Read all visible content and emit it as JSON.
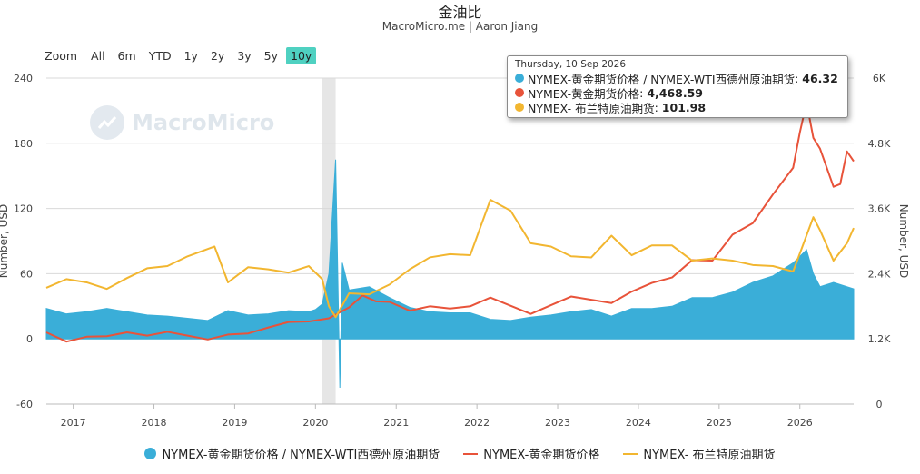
{
  "header": {
    "title": "金油比",
    "subtitle": "MacroMicro.me | Aaron Jiang"
  },
  "zoom": {
    "label": "Zoom",
    "buttons": [
      "All",
      "6m",
      "YTD",
      "1y",
      "2y",
      "3y",
      "5y",
      "10y"
    ],
    "active": "10y"
  },
  "watermark": "MacroMicro",
  "tooltip": {
    "date": "Thursday, 10 Sep 2026",
    "rows": [
      {
        "label": "NYMEX-黄金期货价格 / NYMEX-WTI西德州原油期货",
        "value": "46.32",
        "color": "#3aaed8"
      },
      {
        "label": "NYMEX-黄金期货价格",
        "value": "4,468.59",
        "color": "#e8533a"
      },
      {
        "label": "NYMEX- 布兰特原油期货",
        "value": "101.98",
        "color": "#f2b630"
      }
    ]
  },
  "colors": {
    "ratio": "#3aaed8",
    "gold": "#e8533a",
    "brent": "#f2b630",
    "recession": "#e6e6e6",
    "grid": "#d9d9d9"
  },
  "chart_data": {
    "type": "area",
    "x_labels": [
      "2017",
      "2018",
      "2019",
      "2020",
      "2021",
      "2022",
      "2023",
      "2024",
      "2025",
      "2026"
    ],
    "x_range": [
      "2016-09",
      "2026-09"
    ],
    "left_axis": {
      "label": "Number, USD",
      "ticks": [
        "240",
        "180",
        "120",
        "60",
        "0",
        "-60"
      ],
      "range": [
        -60,
        240
      ]
    },
    "right_axis": {
      "label": "Number, USD",
      "ticks": [
        "6K",
        "4.8K",
        "3.6K",
        "2.4K",
        "1.2K",
        "0"
      ],
      "range": [
        0,
        6000
      ]
    },
    "shaded_period": {
      "from": "2020-02",
      "to": "2020-04"
    },
    "legend": [
      {
        "name": "NYMEX-黄金期货价格 / NYMEX-WTI西德州原油期货",
        "marker": "dot",
        "color": "#3aaed8"
      },
      {
        "name": "NYMEX-黄金期货价格",
        "marker": "line",
        "color": "#e8533a"
      },
      {
        "name": "NYMEX- 布兰特原油期货",
        "marker": "line",
        "color": "#f2b630"
      }
    ],
    "series": [
      {
        "name": "NYMEX-黄金期货价格 / NYMEX-WTI西德州原油期货",
        "axis": "left",
        "style": "area",
        "points": [
          [
            "2016-09",
            28
          ],
          [
            "2016-12",
            23
          ],
          [
            "2017-03",
            25
          ],
          [
            "2017-06",
            28
          ],
          [
            "2017-09",
            25
          ],
          [
            "2017-12",
            22
          ],
          [
            "2018-03",
            21
          ],
          [
            "2018-06",
            19
          ],
          [
            "2018-09",
            17
          ],
          [
            "2018-12",
            26
          ],
          [
            "2019-03",
            22
          ],
          [
            "2019-06",
            23
          ],
          [
            "2019-09",
            26
          ],
          [
            "2019-12",
            25
          ],
          [
            "2020-01",
            27
          ],
          [
            "2020-02",
            32
          ],
          [
            "2020-03",
            60
          ],
          [
            "2020-04",
            165
          ],
          [
            "2020-04-20",
            -45
          ],
          [
            "2020-05",
            70
          ],
          [
            "2020-06",
            45
          ],
          [
            "2020-09",
            48
          ],
          [
            "2020-12",
            38
          ],
          [
            "2021-03",
            29
          ],
          [
            "2021-06",
            25
          ],
          [
            "2021-09",
            24
          ],
          [
            "2021-12",
            24
          ],
          [
            "2022-03",
            18
          ],
          [
            "2022-06",
            17
          ],
          [
            "2022-09",
            20
          ],
          [
            "2022-12",
            22
          ],
          [
            "2023-03",
            25
          ],
          [
            "2023-06",
            27
          ],
          [
            "2023-09",
            21
          ],
          [
            "2023-12",
            28
          ],
          [
            "2024-03",
            28
          ],
          [
            "2024-06",
            30
          ],
          [
            "2024-09",
            38
          ],
          [
            "2024-12",
            38
          ],
          [
            "2025-03",
            43
          ],
          [
            "2025-06",
            52
          ],
          [
            "2025-09",
            58
          ],
          [
            "2025-12",
            70
          ],
          [
            "2026-02",
            82
          ],
          [
            "2026-03",
            60
          ],
          [
            "2026-04",
            48
          ],
          [
            "2026-06",
            52
          ],
          [
            "2026-09",
            46
          ]
        ]
      },
      {
        "name": "NYMEX-黄金期货价格",
        "axis": "right",
        "style": "line",
        "points": [
          [
            "2016-09",
            1320
          ],
          [
            "2016-12",
            1150
          ],
          [
            "2017-03",
            1240
          ],
          [
            "2017-06",
            1250
          ],
          [
            "2017-09",
            1320
          ],
          [
            "2017-12",
            1260
          ],
          [
            "2018-03",
            1330
          ],
          [
            "2018-06",
            1260
          ],
          [
            "2018-09",
            1190
          ],
          [
            "2018-12",
            1280
          ],
          [
            "2019-03",
            1300
          ],
          [
            "2019-06",
            1410
          ],
          [
            "2019-09",
            1510
          ],
          [
            "2019-12",
            1520
          ],
          [
            "2020-03",
            1580
          ],
          [
            "2020-06",
            1780
          ],
          [
            "2020-08",
            2000
          ],
          [
            "2020-10",
            1890
          ],
          [
            "2020-12",
            1880
          ],
          [
            "2021-03",
            1720
          ],
          [
            "2021-06",
            1800
          ],
          [
            "2021-09",
            1760
          ],
          [
            "2021-12",
            1800
          ],
          [
            "2022-03",
            1960
          ],
          [
            "2022-06",
            1810
          ],
          [
            "2022-09",
            1660
          ],
          [
            "2022-12",
            1820
          ],
          [
            "2023-03",
            1980
          ],
          [
            "2023-06",
            1920
          ],
          [
            "2023-09",
            1860
          ],
          [
            "2023-12",
            2070
          ],
          [
            "2024-03",
            2230
          ],
          [
            "2024-06",
            2330
          ],
          [
            "2024-09",
            2650
          ],
          [
            "2024-12",
            2640
          ],
          [
            "2025-03",
            3120
          ],
          [
            "2025-06",
            3330
          ],
          [
            "2025-09",
            3860
          ],
          [
            "2025-12",
            4350
          ],
          [
            "2026-01",
            5000
          ],
          [
            "2026-02",
            5550
          ],
          [
            "2026-03",
            4900
          ],
          [
            "2026-04",
            4700
          ],
          [
            "2026-06",
            4000
          ],
          [
            "2026-07",
            4050
          ],
          [
            "2026-08",
            4650
          ],
          [
            "2026-09",
            4470
          ]
        ]
      },
      {
        "name": "NYMEX- 布兰特原油期货",
        "axis": "left",
        "style": "line",
        "points": [
          [
            "2016-09",
            47
          ],
          [
            "2016-12",
            55
          ],
          [
            "2017-03",
            52
          ],
          [
            "2017-06",
            46
          ],
          [
            "2017-09",
            56
          ],
          [
            "2017-12",
            65
          ],
          [
            "2018-03",
            67
          ],
          [
            "2018-06",
            76
          ],
          [
            "2018-10",
            85
          ],
          [
            "2018-12",
            52
          ],
          [
            "2019-03",
            66
          ],
          [
            "2019-06",
            64
          ],
          [
            "2019-09",
            61
          ],
          [
            "2019-12",
            67
          ],
          [
            "2020-02",
            55
          ],
          [
            "2020-03",
            30
          ],
          [
            "2020-04",
            20
          ],
          [
            "2020-06",
            42
          ],
          [
            "2020-09",
            41
          ],
          [
            "2020-12",
            50
          ],
          [
            "2021-03",
            64
          ],
          [
            "2021-06",
            75
          ],
          [
            "2021-09",
            78
          ],
          [
            "2021-12",
            77
          ],
          [
            "2022-03",
            128
          ],
          [
            "2022-06",
            118
          ],
          [
            "2022-09",
            88
          ],
          [
            "2022-12",
            85
          ],
          [
            "2023-03",
            76
          ],
          [
            "2023-06",
            75
          ],
          [
            "2023-09",
            95
          ],
          [
            "2023-12",
            77
          ],
          [
            "2024-03",
            86
          ],
          [
            "2024-06",
            86
          ],
          [
            "2024-09",
            72
          ],
          [
            "2024-12",
            74
          ],
          [
            "2025-03",
            72
          ],
          [
            "2025-06",
            68
          ],
          [
            "2025-09",
            67
          ],
          [
            "2025-12",
            62
          ],
          [
            "2026-03",
            112
          ],
          [
            "2026-04",
            100
          ],
          [
            "2026-06",
            72
          ],
          [
            "2026-08",
            88
          ],
          [
            "2026-09",
            102
          ]
        ]
      }
    ]
  }
}
